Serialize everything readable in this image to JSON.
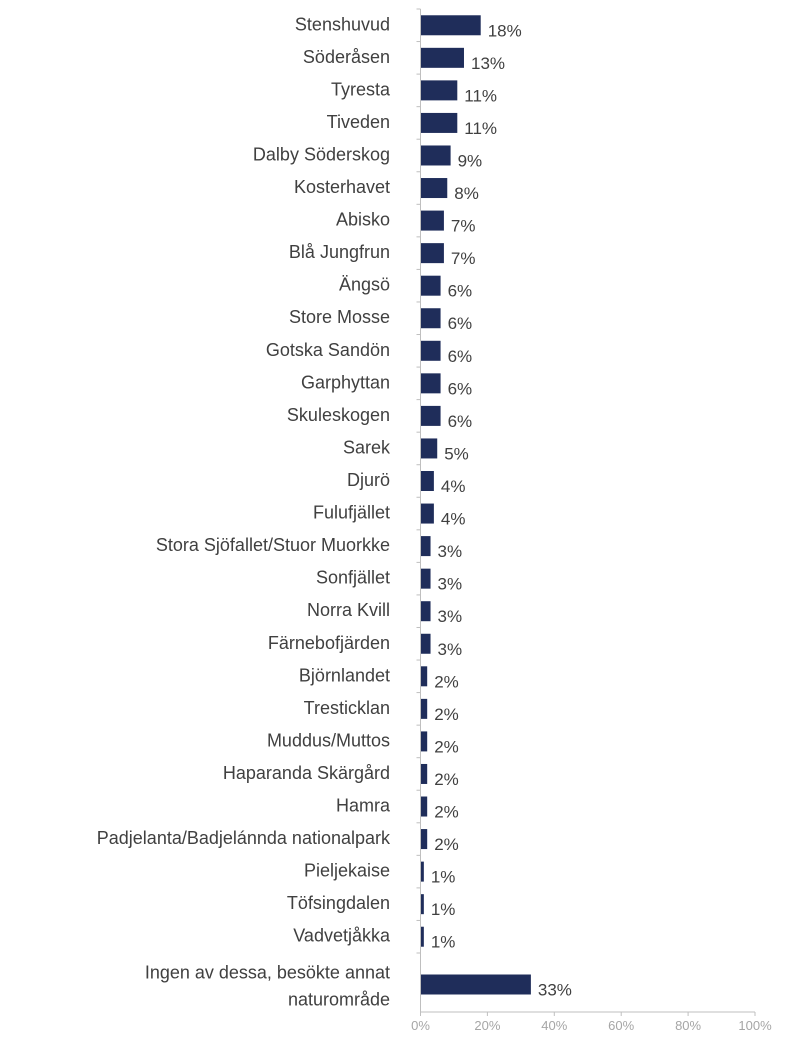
{
  "colors": {
    "bar": "#1f2d5a",
    "axis": "#bfbfbf",
    "text": "#404040",
    "tick_text": "#a6a6a6",
    "background": "#ffffff"
  },
  "chart_data": {
    "type": "bar",
    "orientation": "horizontal",
    "categories": [
      "Stenshuvud",
      "Söderåsen",
      "Tyresta",
      "Tiveden",
      "Dalby Söderskog",
      "Kosterhavet",
      "Abisko",
      "Blå Jungfrun",
      "Ängsö",
      "Store Mosse",
      "Gotska Sandön",
      "Garphyttan",
      "Skuleskogen",
      "Sarek",
      "Djurö",
      "Fulufjället",
      "Stora Sjöfallet/Stuor Muorkke",
      "Sonfjället",
      "Norra Kvill",
      "Färnebofjärden",
      "Björnlandet",
      "Tresticklan",
      "Muddus/Muttos",
      "Haparanda Skärgård",
      "Hamra",
      "Padjelanta/Badjelánnda nationalpark",
      "Pieljekaise",
      "Töfsingdalen",
      "Vadvetjåkka",
      [
        "Ingen av dessa, besökte annat",
        "naturområde"
      ]
    ],
    "values": [
      18,
      13,
      11,
      11,
      9,
      8,
      7,
      7,
      6,
      6,
      6,
      6,
      6,
      5,
      4,
      4,
      3,
      3,
      3,
      3,
      2,
      2,
      2,
      2,
      2,
      2,
      1,
      1,
      1,
      33
    ],
    "value_labels": [
      "18%",
      "13%",
      "11%",
      "11%",
      "9%",
      "8%",
      "7%",
      "7%",
      "6%",
      "6%",
      "6%",
      "6%",
      "6%",
      "5%",
      "4%",
      "4%",
      "3%",
      "3%",
      "3%",
      "3%",
      "2%",
      "2%",
      "2%",
      "2%",
      "2%",
      "2%",
      "1%",
      "1%",
      "1%",
      "33%"
    ],
    "x_ticks": [
      0,
      20,
      40,
      60,
      80,
      100
    ],
    "x_tick_labels": [
      "0%",
      "20%",
      "40%",
      "60%",
      "80%",
      "100%"
    ],
    "xlim": [
      0,
      100
    ],
    "grid": false,
    "legend": "none"
  }
}
